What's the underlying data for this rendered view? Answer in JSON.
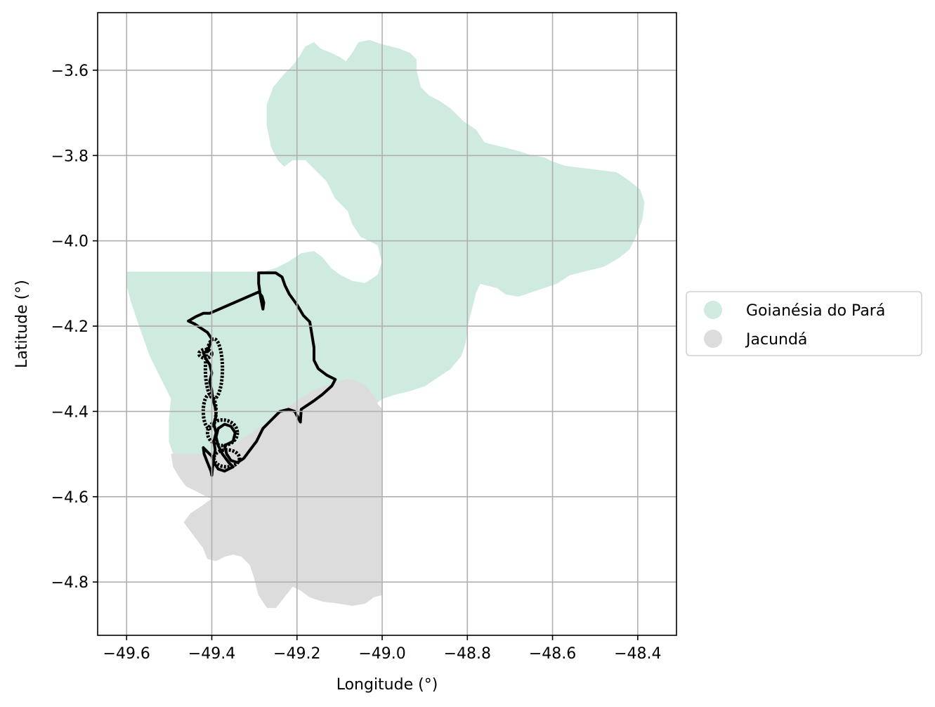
{
  "chart_data": {
    "type": "map",
    "xlabel": "Longitude (°)",
    "ylabel": "Latitude (°)",
    "xlim": [
      -49.668,
      -48.309
    ],
    "ylim": [
      -4.925,
      -3.465
    ],
    "x_ticks": [
      -49.6,
      -49.4,
      -49.2,
      -49.0,
      -48.8,
      -48.6,
      -48.4
    ],
    "y_ticks": [
      -3.6,
      -3.8,
      -4.0,
      -4.2,
      -4.4,
      -4.6,
      -4.8
    ],
    "x_tick_labels": [
      "−49.6",
      "−49.4",
      "−49.2",
      "−49.0",
      "−48.8",
      "−48.6",
      "−48.4"
    ],
    "y_tick_labels": [
      "−3.6",
      "−3.8",
      "−4.0",
      "−4.2",
      "−4.4",
      "−4.6",
      "−4.8"
    ],
    "grid": true,
    "legend_position": "right",
    "legend": [
      {
        "label": "Goianésia do Pará",
        "color": "#cfeadf"
      },
      {
        "label": "Jacundá",
        "color": "#dcdcdc"
      }
    ],
    "regions": [
      {
        "name": "Goianésia do Pará",
        "color": "#cfeadf",
        "polygon": [
          [
            -49.6,
            -4.073
          ],
          [
            -49.28,
            -4.073
          ],
          [
            -49.25,
            -4.065
          ],
          [
            -49.22,
            -4.05
          ],
          [
            -49.19,
            -4.03
          ],
          [
            -49.16,
            -4.025
          ],
          [
            -49.14,
            -4.04
          ],
          [
            -49.12,
            -4.065
          ],
          [
            -49.1,
            -4.08
          ],
          [
            -49.07,
            -4.095
          ],
          [
            -49.04,
            -4.1
          ],
          [
            -49.01,
            -4.08
          ],
          [
            -49.0,
            -4.05
          ],
          [
            -49.01,
            -4.01
          ],
          [
            -49.05,
            -3.99
          ],
          [
            -49.07,
            -3.96
          ],
          [
            -49.08,
            -3.93
          ],
          [
            -49.11,
            -3.9
          ],
          [
            -49.13,
            -3.86
          ],
          [
            -49.16,
            -3.83
          ],
          [
            -49.18,
            -3.81
          ],
          [
            -49.21,
            -3.81
          ],
          [
            -49.23,
            -3.825
          ],
          [
            -49.245,
            -3.81
          ],
          [
            -49.26,
            -3.78
          ],
          [
            -49.27,
            -3.73
          ],
          [
            -49.27,
            -3.68
          ],
          [
            -49.255,
            -3.64
          ],
          [
            -49.23,
            -3.61
          ],
          [
            -49.21,
            -3.59
          ],
          [
            -49.195,
            -3.57
          ],
          [
            -49.18,
            -3.545
          ],
          [
            -49.16,
            -3.535
          ],
          [
            -49.145,
            -3.55
          ],
          [
            -49.12,
            -3.56
          ],
          [
            -49.1,
            -3.57
          ],
          [
            -49.085,
            -3.58
          ],
          [
            -49.07,
            -3.56
          ],
          [
            -49.055,
            -3.535
          ],
          [
            -49.03,
            -3.53
          ],
          [
            -49.0,
            -3.54
          ],
          [
            -48.96,
            -3.55
          ],
          [
            -48.935,
            -3.56
          ],
          [
            -48.92,
            -3.575
          ],
          [
            -48.92,
            -3.6
          ],
          [
            -48.91,
            -3.64
          ],
          [
            -48.89,
            -3.66
          ],
          [
            -48.87,
            -3.67
          ],
          [
            -48.84,
            -3.69
          ],
          [
            -48.81,
            -3.72
          ],
          [
            -48.78,
            -3.74
          ],
          [
            -48.76,
            -3.77
          ],
          [
            -48.72,
            -3.78
          ],
          [
            -48.68,
            -3.79
          ],
          [
            -48.65,
            -3.8
          ],
          [
            -48.62,
            -3.805
          ],
          [
            -48.6,
            -3.815
          ],
          [
            -48.57,
            -3.825
          ],
          [
            -48.53,
            -3.83
          ],
          [
            -48.49,
            -3.835
          ],
          [
            -48.45,
            -3.84
          ],
          [
            -48.42,
            -3.86
          ],
          [
            -48.395,
            -3.88
          ],
          [
            -48.385,
            -3.91
          ],
          [
            -48.39,
            -3.95
          ],
          [
            -48.405,
            -3.99
          ],
          [
            -48.42,
            -4.02
          ],
          [
            -48.445,
            -4.04
          ],
          [
            -48.48,
            -4.06
          ],
          [
            -48.52,
            -4.07
          ],
          [
            -48.56,
            -4.08
          ],
          [
            -48.59,
            -4.1
          ],
          [
            -48.62,
            -4.11
          ],
          [
            -48.65,
            -4.12
          ],
          [
            -48.68,
            -4.13
          ],
          [
            -48.71,
            -4.125
          ],
          [
            -48.73,
            -4.11
          ],
          [
            -48.75,
            -4.105
          ],
          [
            -48.77,
            -4.1
          ],
          [
            -48.78,
            -4.12
          ],
          [
            -48.79,
            -4.16
          ],
          [
            -48.8,
            -4.2
          ],
          [
            -48.805,
            -4.24
          ],
          [
            -48.815,
            -4.27
          ],
          [
            -48.84,
            -4.3
          ],
          [
            -48.87,
            -4.32
          ],
          [
            -48.9,
            -4.34
          ],
          [
            -48.93,
            -4.35
          ],
          [
            -48.97,
            -4.36
          ],
          [
            -49.0,
            -4.37
          ],
          [
            -49.02,
            -4.385
          ],
          [
            -49.04,
            -4.395
          ],
          [
            -49.06,
            -4.375
          ],
          [
            -49.07,
            -4.35
          ],
          [
            -49.08,
            -4.335
          ],
          [
            -49.1,
            -4.33
          ],
          [
            -49.13,
            -4.34
          ],
          [
            -49.16,
            -4.35
          ],
          [
            -49.19,
            -4.37
          ],
          [
            -49.23,
            -4.395
          ],
          [
            -49.26,
            -4.42
          ],
          [
            -49.29,
            -4.44
          ],
          [
            -49.32,
            -4.46
          ],
          [
            -49.35,
            -4.48
          ],
          [
            -49.38,
            -4.495
          ],
          [
            -49.42,
            -4.5
          ],
          [
            -49.46,
            -4.5
          ],
          [
            -49.49,
            -4.5
          ],
          [
            -49.5,
            -4.47
          ],
          [
            -49.5,
            -4.42
          ],
          [
            -49.495,
            -4.37
          ],
          [
            -49.52,
            -4.32
          ],
          [
            -49.545,
            -4.27
          ],
          [
            -49.57,
            -4.2
          ],
          [
            -49.59,
            -4.14
          ],
          [
            -49.6,
            -4.1
          ]
        ]
      },
      {
        "name": "Jacundá",
        "color": "#dcdcdc",
        "polygon": [
          [
            -49.495,
            -4.5
          ],
          [
            -49.42,
            -4.5
          ],
          [
            -49.38,
            -4.495
          ],
          [
            -49.35,
            -4.48
          ],
          [
            -49.32,
            -4.46
          ],
          [
            -49.29,
            -4.44
          ],
          [
            -49.26,
            -4.42
          ],
          [
            -49.23,
            -4.395
          ],
          [
            -49.19,
            -4.37
          ],
          [
            -49.16,
            -4.35
          ],
          [
            -49.13,
            -4.34
          ],
          [
            -49.1,
            -4.33
          ],
          [
            -49.08,
            -4.325
          ],
          [
            -49.06,
            -4.33
          ],
          [
            -49.04,
            -4.34
          ],
          [
            -49.02,
            -4.365
          ],
          [
            -49.01,
            -4.385
          ],
          [
            -49.0,
            -4.395
          ],
          [
            -49.0,
            -4.83
          ],
          [
            -49.02,
            -4.835
          ],
          [
            -49.04,
            -4.85
          ],
          [
            -49.07,
            -4.855
          ],
          [
            -49.1,
            -4.85
          ],
          [
            -49.14,
            -4.845
          ],
          [
            -49.17,
            -4.835
          ],
          [
            -49.19,
            -4.82
          ],
          [
            -49.21,
            -4.81
          ],
          [
            -49.23,
            -4.835
          ],
          [
            -49.25,
            -4.86
          ],
          [
            -49.27,
            -4.86
          ],
          [
            -49.29,
            -4.83
          ],
          [
            -49.3,
            -4.79
          ],
          [
            -49.31,
            -4.76
          ],
          [
            -49.33,
            -4.74
          ],
          [
            -49.35,
            -4.735
          ],
          [
            -49.37,
            -4.74
          ],
          [
            -49.39,
            -4.75
          ],
          [
            -49.41,
            -4.745
          ],
          [
            -49.42,
            -4.72
          ],
          [
            -49.435,
            -4.7
          ],
          [
            -49.45,
            -4.68
          ],
          [
            -49.465,
            -4.66
          ],
          [
            -49.45,
            -4.64
          ],
          [
            -49.42,
            -4.62
          ],
          [
            -49.4,
            -4.605
          ],
          [
            -49.43,
            -4.59
          ],
          [
            -49.46,
            -4.575
          ],
          [
            -49.475,
            -4.555
          ],
          [
            -49.49,
            -4.53
          ]
        ]
      }
    ],
    "overlay_outline": {
      "color": "#000000",
      "polyline": [
        [
          -49.455,
          -4.188
        ],
        [
          -49.438,
          -4.178
        ],
        [
          -49.42,
          -4.17
        ],
        [
          -49.405,
          -4.17
        ],
        [
          -49.29,
          -4.12
        ],
        [
          -49.282,
          -4.13
        ],
        [
          -49.278,
          -4.145
        ],
        [
          -49.28,
          -4.16
        ],
        [
          -49.285,
          -4.135
        ],
        [
          -49.29,
          -4.1
        ],
        [
          -49.29,
          -4.075
        ],
        [
          -49.25,
          -4.075
        ],
        [
          -49.235,
          -4.085
        ],
        [
          -49.228,
          -4.105
        ],
        [
          -49.218,
          -4.125
        ],
        [
          -49.2,
          -4.15
        ],
        [
          -49.185,
          -4.175
        ],
        [
          -49.17,
          -4.19
        ],
        [
          -49.165,
          -4.22
        ],
        [
          -49.16,
          -4.25
        ],
        [
          -49.16,
          -4.28
        ],
        [
          -49.15,
          -4.3
        ],
        [
          -49.13,
          -4.315
        ],
        [
          -49.11,
          -4.325
        ],
        [
          -49.118,
          -4.34
        ],
        [
          -49.14,
          -4.36
        ],
        [
          -49.16,
          -4.375
        ],
        [
          -49.175,
          -4.385
        ],
        [
          -49.19,
          -4.395
        ],
        [
          -49.192,
          -4.425
        ],
        [
          -49.205,
          -4.4
        ],
        [
          -49.22,
          -4.395
        ],
        [
          -49.24,
          -4.4
        ],
        [
          -49.26,
          -4.42
        ],
        [
          -49.28,
          -4.44
        ],
        [
          -49.295,
          -4.47
        ],
        [
          -49.31,
          -4.49
        ],
        [
          -49.325,
          -4.51
        ],
        [
          -49.34,
          -4.52
        ],
        [
          -49.355,
          -4.515
        ],
        [
          -49.365,
          -4.5
        ],
        [
          -49.37,
          -4.48
        ],
        [
          -49.35,
          -4.47
        ],
        [
          -49.345,
          -4.45
        ],
        [
          -49.355,
          -4.435
        ],
        [
          -49.37,
          -4.43
        ],
        [
          -49.385,
          -4.44
        ],
        [
          -49.39,
          -4.46
        ],
        [
          -49.385,
          -4.48
        ],
        [
          -49.375,
          -4.5
        ],
        [
          -49.36,
          -4.52
        ],
        [
          -49.35,
          -4.53
        ],
        [
          -49.37,
          -4.54
        ],
        [
          -49.385,
          -4.535
        ],
        [
          -49.395,
          -4.52
        ],
        [
          -49.4,
          -4.505
        ],
        [
          -49.41,
          -4.495
        ],
        [
          -49.42,
          -4.485
        ],
        [
          -49.418,
          -4.5
        ],
        [
          -49.41,
          -4.52
        ],
        [
          -49.402,
          -4.54
        ],
        [
          -49.4,
          -4.55
        ],
        [
          -49.398,
          -4.53
        ],
        [
          -49.395,
          -4.51
        ],
        [
          -49.392,
          -4.49
        ],
        [
          -49.395,
          -4.47
        ],
        [
          -49.39,
          -4.45
        ],
        [
          -49.395,
          -4.43
        ],
        [
          -49.39,
          -4.41
        ],
        [
          -49.392,
          -4.39
        ],
        [
          -49.398,
          -4.37
        ],
        [
          -49.4,
          -4.35
        ],
        [
          -49.405,
          -4.33
        ],
        [
          -49.4,
          -4.31
        ],
        [
          -49.405,
          -4.29
        ],
        [
          -49.415,
          -4.275
        ],
        [
          -49.42,
          -4.262
        ],
        [
          -49.41,
          -4.26
        ],
        [
          -49.405,
          -4.245
        ],
        [
          -49.4,
          -4.23
        ],
        [
          -49.41,
          -4.215
        ],
        [
          -49.425,
          -4.205
        ],
        [
          -49.44,
          -4.195
        ],
        [
          -49.455,
          -4.188
        ]
      ],
      "dense_blobs": [
        {
          "center": [
            -49.395,
            -4.3
          ],
          "rx": 0.02,
          "ry": 0.07
        },
        {
          "center": [
            -49.375,
            -4.45
          ],
          "rx": 0.035,
          "ry": 0.03
        },
        {
          "center": [
            -49.365,
            -4.51
          ],
          "rx": 0.03,
          "ry": 0.02
        },
        {
          "center": [
            -49.415,
            -4.265
          ],
          "rx": 0.015,
          "ry": 0.01
        },
        {
          "center": [
            -49.405,
            -4.4
          ],
          "rx": 0.015,
          "ry": 0.04
        }
      ]
    }
  }
}
